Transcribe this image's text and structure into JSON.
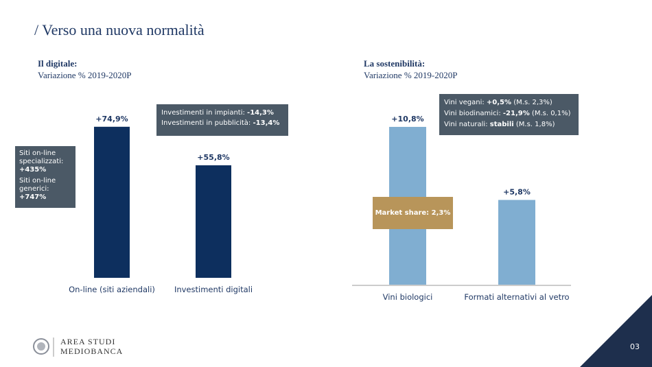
{
  "slide_title": "/ Verso una nuova normalità",
  "chart_data": [
    {
      "type": "bar",
      "title": "Il digitale:",
      "subtitle": "Variazione % 2019-2020P",
      "categories": [
        "On-line (siti aziendali)",
        "Investimenti digitali"
      ],
      "values": [
        74.9,
        55.8
      ],
      "value_labels": [
        "+74,9%",
        "+55,8%"
      ],
      "color": "#0d2f5e",
      "annotations": [
        [
          "Investimenti in impianti:",
          "-14,3%",
          "Investimenti in pubblicità:",
          "-13,4%"
        ],
        [
          "Siti on-line specializzati:",
          "+435%",
          "Siti on-line generici:",
          "+747%"
        ]
      ]
    },
    {
      "type": "bar",
      "title": "La sostenibilità:",
      "subtitle": "Variazione % 2019-2020P",
      "categories": [
        "Vini biologici",
        "Formati alternativi al vetro"
      ],
      "values": [
        10.8,
        5.8
      ],
      "value_labels": [
        "+10,8%",
        "+5,8%"
      ],
      "color": "#80aed1",
      "annotations": [
        [
          "Vini vegani:",
          "+0,5%",
          "(M.s. 2,3%)",
          "Vini biodinamici:",
          "-21,9%",
          "(M.s. 0,1%)",
          "Vini naturali:",
          "stabili",
          "(M.s. 1,8%)"
        ],
        [
          "Market share: 2,3%"
        ]
      ]
    }
  ],
  "logo": [
    "AREA STUDI",
    "MEDIOBANCA"
  ],
  "page_number": "03"
}
